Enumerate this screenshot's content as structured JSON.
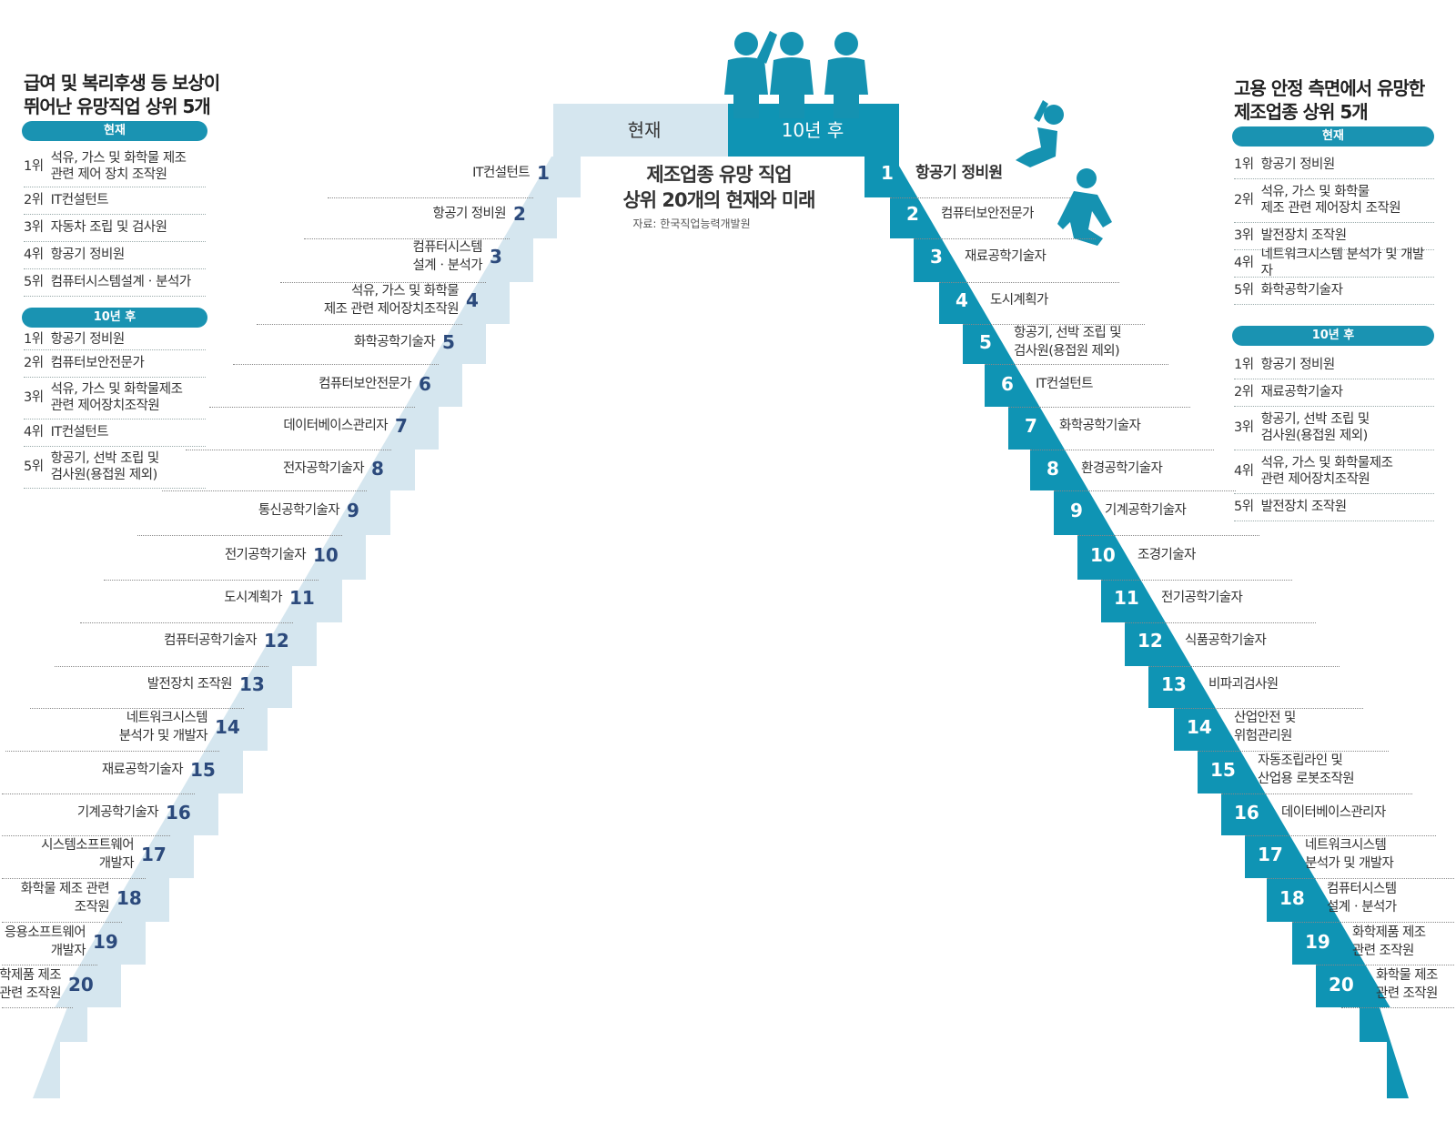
{
  "colors": {
    "light_stair": "#d5e6ef",
    "dark_stair": "#0f94b4",
    "person": "#1592b1",
    "pill": "#1a93b2",
    "left_num": "#2c4a7c"
  },
  "center": {
    "header_now": "현재",
    "header_future": "10년 후",
    "title_line1": "제조업종 유망 직업",
    "title_line2": "상위 20개의 현재와 미래",
    "source": "자료: 한국직업능력개발원"
  },
  "left_panel": {
    "title_line1": "급여 및 복리후생 등 보상이",
    "title_line2": "뛰어난 유망직업 상위 5개",
    "now_label": "현재",
    "future_label": "10년 후",
    "now": [
      {
        "rank": "1위",
        "line1": "석유, 가스 및 화학물 제조",
        "line2": "관련 제어 장치 조작원"
      },
      {
        "rank": "2위",
        "line1": "IT컨설턴트",
        "line2": ""
      },
      {
        "rank": "3위",
        "line1": "자동차 조립 및 검사원",
        "line2": ""
      },
      {
        "rank": "4위",
        "line1": "항공기 정비원",
        "line2": ""
      },
      {
        "rank": "5위",
        "line1": "컴퓨터시스템설계ㆍ분석가",
        "line2": ""
      }
    ],
    "future": [
      {
        "rank": "1위",
        "line1": "항공기 정비원",
        "line2": ""
      },
      {
        "rank": "2위",
        "line1": "컴퓨터보안전문가",
        "line2": ""
      },
      {
        "rank": "3위",
        "line1": "석유, 가스 및 화학물제조",
        "line2": "관련 제어장치조작원"
      },
      {
        "rank": "4위",
        "line1": "IT컨설턴트",
        "line2": ""
      },
      {
        "rank": "5위",
        "line1": "항공기, 선박 조립 및",
        "line2": "검사원(용접원 제외)"
      }
    ]
  },
  "right_panel": {
    "title_line1": "고용 안정 측면에서 유망한",
    "title_line2": "제조업종 상위 5개",
    "now_label": "현재",
    "future_label": "10년 후",
    "now": [
      {
        "rank": "1위",
        "line1": "항공기 정비원",
        "line2": ""
      },
      {
        "rank": "2위",
        "line1": "석유, 가스 및 화학물",
        "line2": "제조 관련 제어장치 조작원"
      },
      {
        "rank": "3위",
        "line1": "발전장치 조작원",
        "line2": ""
      },
      {
        "rank": "4위",
        "line1": "네트워크시스템 분석가 및 개발자",
        "line2": ""
      },
      {
        "rank": "5위",
        "line1": "화학공학기술자",
        "line2": ""
      }
    ],
    "future": [
      {
        "rank": "1위",
        "line1": "항공기 정비원",
        "line2": ""
      },
      {
        "rank": "2위",
        "line1": "재료공학기술자",
        "line2": ""
      },
      {
        "rank": "3위",
        "line1": "항공기, 선박 조립 및",
        "line2": "검사원(용접원 제외)"
      },
      {
        "rank": "4위",
        "line1": "석유, 가스 및 화학물제조",
        "line2": "관련 제어장치조작원"
      },
      {
        "rank": "5위",
        "line1": "발전장치 조작원",
        "line2": ""
      }
    ]
  },
  "stairs_now": [
    {
      "num": "1",
      "line1": "IT컨설턴트",
      "line2": ""
    },
    {
      "num": "2",
      "line1": "항공기 정비원",
      "line2": ""
    },
    {
      "num": "3",
      "line1": "컴퓨터시스템",
      "line2": "설계ㆍ분석가"
    },
    {
      "num": "4",
      "line1": "석유, 가스 및 화학물",
      "line2": "제조 관련 제어장치조작원"
    },
    {
      "num": "5",
      "line1": "화학공학기술자",
      "line2": ""
    },
    {
      "num": "6",
      "line1": "컴퓨터보안전문가",
      "line2": ""
    },
    {
      "num": "7",
      "line1": "데이터베이스관리자",
      "line2": ""
    },
    {
      "num": "8",
      "line1": "전자공학기술자",
      "line2": ""
    },
    {
      "num": "9",
      "line1": "통신공학기술자",
      "line2": ""
    },
    {
      "num": "10",
      "line1": "전기공학기술자",
      "line2": ""
    },
    {
      "num": "11",
      "line1": "도시계획가",
      "line2": ""
    },
    {
      "num": "12",
      "line1": "컴퓨터공학기술자",
      "line2": ""
    },
    {
      "num": "13",
      "line1": "발전장치 조작원",
      "line2": ""
    },
    {
      "num": "14",
      "line1": "네트워크시스템",
      "line2": "분석가 및 개발자"
    },
    {
      "num": "15",
      "line1": "재료공학기술자",
      "line2": ""
    },
    {
      "num": "16",
      "line1": "기계공학기술자",
      "line2": ""
    },
    {
      "num": "17",
      "line1": "시스템소프트웨어",
      "line2": "개발자"
    },
    {
      "num": "18",
      "line1": "화학물 제조 관련",
      "line2": "조작원"
    },
    {
      "num": "19",
      "line1": "응용소프트웨어",
      "line2": "개발자"
    },
    {
      "num": "20",
      "line1": "화학제품 제조",
      "line2": "관련 조작원"
    }
  ],
  "stairs_future": [
    {
      "num": "1",
      "line1": "항공기 정비원",
      "line2": ""
    },
    {
      "num": "2",
      "line1": "컴퓨터보안전문가",
      "line2": ""
    },
    {
      "num": "3",
      "line1": "재료공학기술자",
      "line2": ""
    },
    {
      "num": "4",
      "line1": "도시계획가",
      "line2": ""
    },
    {
      "num": "5",
      "line1": "항공기, 선박 조립 및",
      "line2": "검사원(용접원 제외)"
    },
    {
      "num": "6",
      "line1": "IT컨설턴트",
      "line2": ""
    },
    {
      "num": "7",
      "line1": "화학공학기술자",
      "line2": ""
    },
    {
      "num": "8",
      "line1": "환경공학기술자",
      "line2": ""
    },
    {
      "num": "9",
      "line1": "기계공학기술자",
      "line2": ""
    },
    {
      "num": "10",
      "line1": "조경기술자",
      "line2": ""
    },
    {
      "num": "11",
      "line1": "전기공학기술자",
      "line2": ""
    },
    {
      "num": "12",
      "line1": "식품공학기술자",
      "line2": ""
    },
    {
      "num": "13",
      "line1": "비파괴검사원",
      "line2": ""
    },
    {
      "num": "14",
      "line1": "산업안전 및",
      "line2": "위험관리원"
    },
    {
      "num": "15",
      "line1": "자동조립라인 및",
      "line2": "산업용 로봇조작원"
    },
    {
      "num": "16",
      "line1": "데이터베이스관리자",
      "line2": ""
    },
    {
      "num": "17",
      "line1": "네트워크시스템",
      "line2": "분석가 및 개발자"
    },
    {
      "num": "18",
      "line1": "컴퓨터시스템",
      "line2": "설계ㆍ분석가"
    },
    {
      "num": "19",
      "line1": "화학제품 제조",
      "line2": "관련 조작원"
    },
    {
      "num": "20",
      "line1": "화학물 제조",
      "line2": "관련 조작원"
    }
  ]
}
